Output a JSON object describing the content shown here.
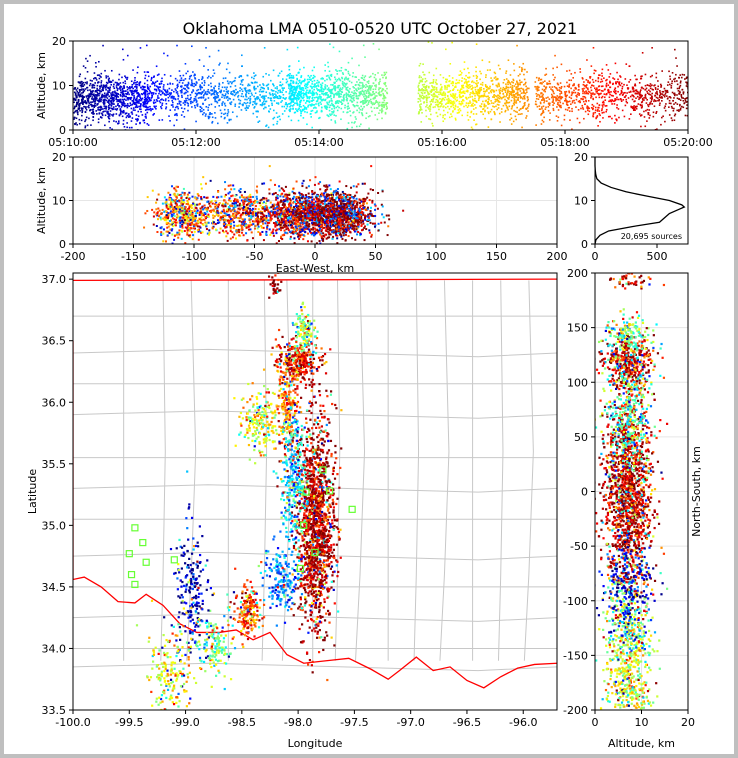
{
  "title": "Oklahoma LMA 0510-0520 UTC October 27, 2021",
  "colors": {
    "state_border": "#ff0000",
    "county_lines": "#c8c8c8",
    "grid": "#e6e6e6",
    "station_marker": "#66ff33",
    "histogram_line": "#000000"
  },
  "chart_data": [
    {
      "id": "time-altitude",
      "type": "scatter",
      "xlabel": "",
      "ylabel": "Altitude, km",
      "xticks": [
        "05:10:00",
        "05:12:00",
        "05:14:00",
        "05:16:00",
        "05:18:00",
        "05:20:00"
      ],
      "xlim_minutes": [
        0,
        10
      ],
      "ylim": [
        0,
        20
      ],
      "yticks": [
        0,
        10,
        20
      ],
      "colormap": "jet (by time)",
      "activity_clusters": [
        {
          "t_min": 0.0,
          "t_max": 1.2,
          "alt_mean": 7
        },
        {
          "t_min": 1.2,
          "t_max": 3.7,
          "alt_mean": 8
        },
        {
          "t_min": 3.5,
          "t_max": 5.1,
          "alt_mean": 8
        },
        {
          "t_min": 5.6,
          "t_max": 7.4,
          "alt_mean": 8
        },
        {
          "t_min": 7.5,
          "t_max": 10.0,
          "alt_mean": 8
        }
      ]
    },
    {
      "id": "ew-altitude",
      "type": "scatter",
      "xlabel": "East-West, km",
      "ylabel": "Altitude, km",
      "xlim": [
        -200,
        200
      ],
      "xticks": [
        -200,
        -150,
        -100,
        -50,
        0,
        50,
        100,
        150,
        200
      ],
      "ylim": [
        0,
        20
      ],
      "yticks": [
        0,
        10,
        20
      ]
    },
    {
      "id": "altitude-histogram",
      "type": "line",
      "xlabel": "",
      "ylabel": "",
      "xlim": [
        0,
        750
      ],
      "xticks": [
        0,
        500
      ],
      "ylim": [
        0,
        20
      ],
      "yticks": [
        0,
        10,
        20
      ],
      "annotation": "20,695 sources",
      "profile": [
        {
          "alt": 0.0,
          "count": 0
        },
        {
          "alt": 1.0,
          "count": 8
        },
        {
          "alt": 2.0,
          "count": 40
        },
        {
          "alt": 3.0,
          "count": 110
        },
        {
          "alt": 4.0,
          "count": 300
        },
        {
          "alt": 5.0,
          "count": 520
        },
        {
          "alt": 6.0,
          "count": 560
        },
        {
          "alt": 7.0,
          "count": 600
        },
        {
          "alt": 8.0,
          "count": 680
        },
        {
          "alt": 8.5,
          "count": 720
        },
        {
          "alt": 9.0,
          "count": 700
        },
        {
          "alt": 10.0,
          "count": 600
        },
        {
          "alt": 11.0,
          "count": 420
        },
        {
          "alt": 12.0,
          "count": 250
        },
        {
          "alt": 13.0,
          "count": 130
        },
        {
          "alt": 14.0,
          "count": 50
        },
        {
          "alt": 15.0,
          "count": 15
        },
        {
          "alt": 16.0,
          "count": 6
        },
        {
          "alt": 17.0,
          "count": 2
        },
        {
          "alt": 18.0,
          "count": 0
        },
        {
          "alt": 20.0,
          "count": 0
        }
      ]
    },
    {
      "id": "plan-view",
      "type": "scatter",
      "xlabel": "Longitude",
      "ylabel": "Latitude",
      "xlim": [
        -100.0,
        -95.7
      ],
      "xticks": [
        "-100.0",
        "-99.5",
        "-99.0",
        "-98.5",
        "-98.0",
        "-97.5",
        "-97.0",
        "-96.5",
        "-96.0"
      ],
      "ylim": [
        33.5,
        37.05
      ],
      "yticks": [
        "33.5",
        "34.0",
        "34.5",
        "35.0",
        "35.5",
        "36.0",
        "36.5",
        "37.0"
      ],
      "stations": [
        {
          "lon": -99.45,
          "lat": 34.98
        },
        {
          "lon": -99.38,
          "lat": 34.86
        },
        {
          "lon": -99.5,
          "lat": 34.77
        },
        {
          "lon": -99.35,
          "lat": 34.7
        },
        {
          "lon": -99.1,
          "lat": 34.72
        },
        {
          "lon": -99.48,
          "lat": 34.6
        },
        {
          "lon": -99.45,
          "lat": 34.52
        },
        {
          "lon": -97.52,
          "lat": 35.13
        },
        {
          "lon": -97.78,
          "lat": 35.45
        },
        {
          "lon": -97.72,
          "lat": 35.28
        },
        {
          "lon": -97.93,
          "lat": 35.27
        },
        {
          "lon": -97.95,
          "lat": 35.0
        },
        {
          "lon": -97.85,
          "lat": 34.78
        },
        {
          "lon": -97.98,
          "lat": 34.65
        }
      ]
    },
    {
      "id": "altitude-ns",
      "type": "scatter",
      "xlabel": "Altitude, km",
      "ylabel": "North-South, km",
      "xlim": [
        0,
        20
      ],
      "xticks": [
        0,
        10,
        20
      ],
      "ylim": [
        -200,
        200
      ],
      "yticks": [
        -200,
        -150,
        -100,
        -50,
        0,
        50,
        100,
        150,
        200
      ]
    }
  ]
}
